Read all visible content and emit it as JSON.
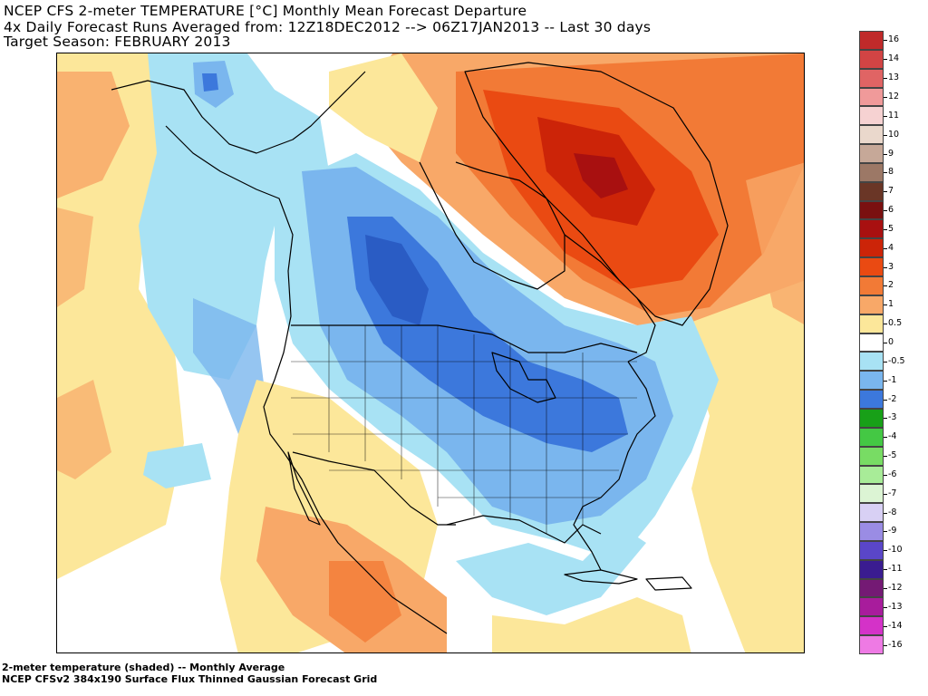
{
  "header": {
    "line1": "NCEP CFS 2-meter TEMPERATURE [°C] Monthly Mean Forecast Departure",
    "line2": "4x Daily Forecast Runs Averaged from: 12Z18DEC2012 --> 06Z17JAN2013 -- Last 30 days",
    "line3": "Target Season: FEBRUARY 2013"
  },
  "footer": {
    "line1": "2-meter temperature (shaded) -- Monthly Average",
    "line2": "NCEP CFSv2 384x190 Surface Flux Thinned Gaussian Forecast Grid"
  },
  "legend": {
    "levels": [
      {
        "label": "16",
        "color": "#c02a2a"
      },
      {
        "label": "14",
        "color": "#d24444"
      },
      {
        "label": "13",
        "color": "#e06464"
      },
      {
        "label": "12",
        "color": "#f09a9a"
      },
      {
        "label": "11",
        "color": "#f6d2d2"
      },
      {
        "label": "10",
        "color": "#ead8cc"
      },
      {
        "label": "9",
        "color": "#c6a898"
      },
      {
        "label": "8",
        "color": "#9c7866"
      },
      {
        "label": "7",
        "color": "#6a3626"
      },
      {
        "label": "6",
        "color": "#7a1010"
      },
      {
        "label": "5",
        "color": "#a81010"
      },
      {
        "label": "4",
        "color": "#cc2408"
      },
      {
        "label": "3",
        "color": "#ea4a12"
      },
      {
        "label": "2",
        "color": "#f27a36"
      },
      {
        "label": "1",
        "color": "#f8a868"
      },
      {
        "label": "0.5",
        "color": "#fce79a"
      },
      {
        "label": "0",
        "color": "#ffffff"
      },
      {
        "label": "-0.5",
        "color": "#a8e2f4"
      },
      {
        "label": "-1",
        "color": "#7ab6ee"
      },
      {
        "label": "-2",
        "color": "#3c78dc"
      },
      {
        "label": "-3",
        "color": "#18a018"
      },
      {
        "label": "-4",
        "color": "#44c844"
      },
      {
        "label": "-5",
        "color": "#78dc64"
      },
      {
        "label": "-6",
        "color": "#a8ec98"
      },
      {
        "label": "-7",
        "color": "#dcf4d4"
      },
      {
        "label": "-8",
        "color": "#d8d0f4"
      },
      {
        "label": "-9",
        "color": "#9a8ce4"
      },
      {
        "label": "-10",
        "color": "#5a46c8"
      },
      {
        "label": "-11",
        "color": "#3a1c90"
      },
      {
        "label": "-12",
        "color": "#741a74"
      },
      {
        "label": "-13",
        "color": "#a81c9c"
      },
      {
        "label": "-14",
        "color": "#d432c8"
      },
      {
        "label": "-16",
        "color": "#ee7ae4"
      }
    ]
  }
}
